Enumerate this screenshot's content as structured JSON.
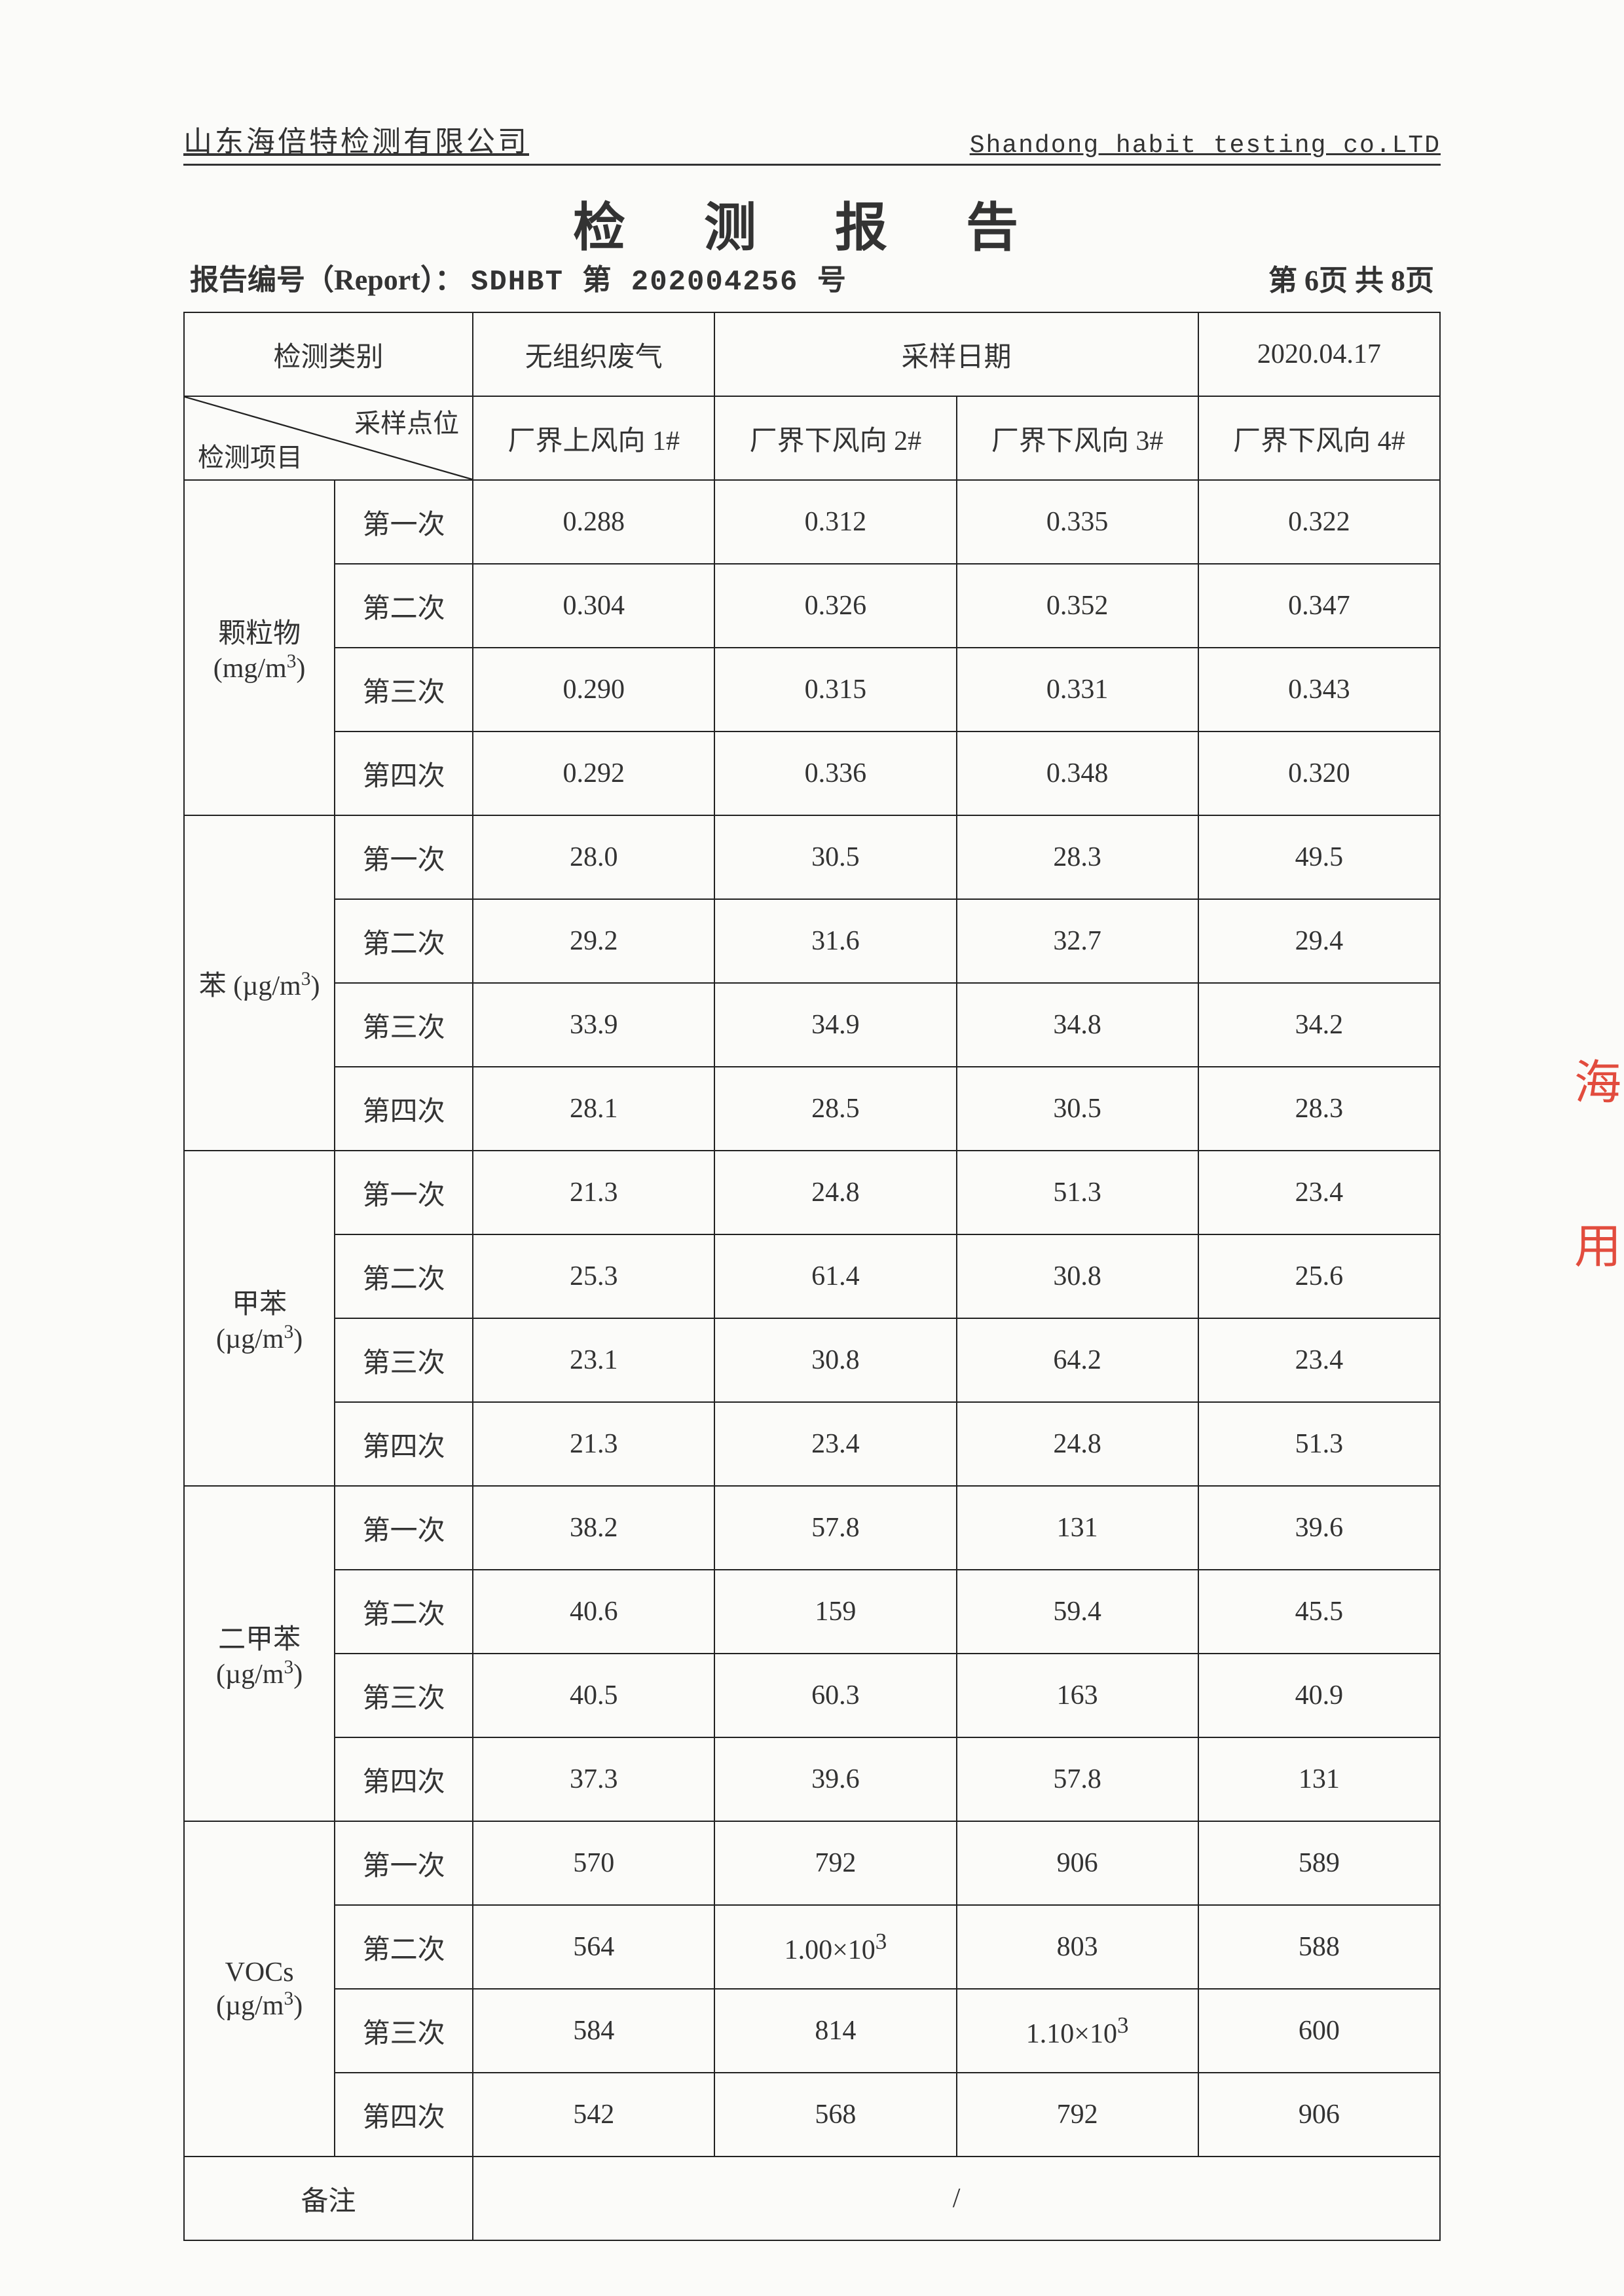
{
  "header": {
    "company_cn": "山东海倍特检测有限公司",
    "company_en": "Shandong habit testing co.LTD",
    "title": "检 测 报 告",
    "report_label": "报告编号（Report）：",
    "report_no": "SDHBT 第 202004256 号",
    "page_no": "第 6页 共 8页"
  },
  "meta": {
    "category_label": "检测类别",
    "category_value": "无组织废气",
    "date_label": "采样日期",
    "date_value": "2020.04.17",
    "diag_top": "采样点位",
    "diag_bottom": "检测项目",
    "cols": [
      "厂界上风向 1#",
      "厂界下风向 2#",
      "厂界下风向 3#",
      "厂界下风向 4#"
    ]
  },
  "groups": [
    {
      "name": "颗粒物",
      "unit_html": "(mg/m<sup>3</sup>)",
      "rows": [
        {
          "label": "第一次",
          "v": [
            "0.288",
            "0.312",
            "0.335",
            "0.322"
          ]
        },
        {
          "label": "第二次",
          "v": [
            "0.304",
            "0.326",
            "0.352",
            "0.347"
          ]
        },
        {
          "label": "第三次",
          "v": [
            "0.290",
            "0.315",
            "0.331",
            "0.343"
          ]
        },
        {
          "label": "第四次",
          "v": [
            "0.292",
            "0.336",
            "0.348",
            "0.320"
          ]
        }
      ]
    },
    {
      "name": "苯",
      "unit_html": "(µg/m<sup>3</sup>)",
      "inline_unit": true,
      "rows": [
        {
          "label": "第一次",
          "v": [
            "28.0",
            "30.5",
            "28.3",
            "49.5"
          ]
        },
        {
          "label": "第二次",
          "v": [
            "29.2",
            "31.6",
            "32.7",
            "29.4"
          ]
        },
        {
          "label": "第三次",
          "v": [
            "33.9",
            "34.9",
            "34.8",
            "34.2"
          ]
        },
        {
          "label": "第四次",
          "v": [
            "28.1",
            "28.5",
            "30.5",
            "28.3"
          ]
        }
      ]
    },
    {
      "name": "甲苯",
      "unit_html": "(µg/m<sup>3</sup>)",
      "rows": [
        {
          "label": "第一次",
          "v": [
            "21.3",
            "24.8",
            "51.3",
            "23.4"
          ]
        },
        {
          "label": "第二次",
          "v": [
            "25.3",
            "61.4",
            "30.8",
            "25.6"
          ]
        },
        {
          "label": "第三次",
          "v": [
            "23.1",
            "30.8",
            "64.2",
            "23.4"
          ]
        },
        {
          "label": "第四次",
          "v": [
            "21.3",
            "23.4",
            "24.8",
            "51.3"
          ]
        }
      ]
    },
    {
      "name": "二甲苯",
      "unit_html": "(µg/m<sup>3</sup>)",
      "rows": [
        {
          "label": "第一次",
          "v": [
            "38.2",
            "57.8",
            "131",
            "39.6"
          ]
        },
        {
          "label": "第二次",
          "v": [
            "40.6",
            "159",
            "59.4",
            "45.5"
          ]
        },
        {
          "label": "第三次",
          "v": [
            "40.5",
            "60.3",
            "163",
            "40.9"
          ]
        },
        {
          "label": "第四次",
          "v": [
            "37.3",
            "39.6",
            "57.8",
            "131"
          ]
        }
      ]
    },
    {
      "name": "VOCs",
      "unit_html": "(µg/m<sup>3</sup>)",
      "rows": [
        {
          "label": "第一次",
          "v": [
            "570",
            "792",
            "906",
            "589"
          ]
        },
        {
          "label": "第二次",
          "v": [
            "564",
            "1.00×10<sup>3</sup>",
            "803",
            "588"
          ]
        },
        {
          "label": "第三次",
          "v": [
            "584",
            "814",
            "1.10×10<sup>3</sup>",
            "600"
          ]
        },
        {
          "label": "第四次",
          "v": [
            "542",
            "568",
            "792",
            "906"
          ]
        }
      ]
    }
  ],
  "footer": {
    "remark_label": "备注",
    "remark_value": "/"
  },
  "stamp": [
    "海",
    "用"
  ],
  "style": {
    "border_color": "#222222",
    "text_color": "#333333",
    "stamp_color": "#e03a2a",
    "background": "#fbfbf9",
    "col_widths_pct": [
      12,
      11,
      19.25,
      19.25,
      19.25,
      19.25
    ]
  }
}
